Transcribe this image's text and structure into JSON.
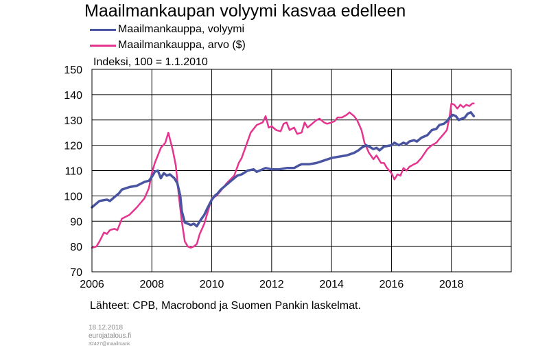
{
  "chart_data": {
    "type": "line",
    "title": "Maailmankaupan volyymi kasvaa edelleen",
    "ylabel": "Indeksi, 100 = 1.1.2010",
    "xlim": [
      2006,
      2020
    ],
    "ylim": [
      70,
      150
    ],
    "x_ticks": [
      2006,
      2008,
      2010,
      2012,
      2014,
      2016,
      2018
    ],
    "y_ticks": [
      70,
      80,
      90,
      100,
      110,
      120,
      130,
      140,
      150
    ],
    "grid": true,
    "legend_position": "top-left",
    "series": [
      {
        "name": "Maailmankauppa, volyymi",
        "color": "#4a55a2",
        "points": [
          [
            2006.0,
            95.5
          ],
          [
            2006.25,
            98
          ],
          [
            2006.5,
            98.5
          ],
          [
            2006.6,
            98
          ],
          [
            2006.75,
            99.5
          ],
          [
            2006.9,
            101
          ],
          [
            2007.0,
            102.5
          ],
          [
            2007.25,
            103.5
          ],
          [
            2007.5,
            104
          ],
          [
            2007.75,
            105.5
          ],
          [
            2007.9,
            106
          ],
          [
            2008.0,
            107.5
          ],
          [
            2008.1,
            109.5
          ],
          [
            2008.2,
            110
          ],
          [
            2008.3,
            107
          ],
          [
            2008.4,
            109
          ],
          [
            2008.5,
            108
          ],
          [
            2008.6,
            108.5
          ],
          [
            2008.75,
            107
          ],
          [
            2008.85,
            105
          ],
          [
            2008.95,
            100
          ],
          [
            2009.0,
            94
          ],
          [
            2009.1,
            89.5
          ],
          [
            2009.2,
            89
          ],
          [
            2009.3,
            88.5
          ],
          [
            2009.4,
            89
          ],
          [
            2009.5,
            88
          ],
          [
            2009.6,
            90
          ],
          [
            2009.75,
            92.5
          ],
          [
            2009.85,
            95
          ],
          [
            2010.0,
            98.5
          ],
          [
            2010.1,
            100
          ],
          [
            2010.2,
            101
          ],
          [
            2010.3,
            102.5
          ],
          [
            2010.5,
            104.5
          ],
          [
            2010.7,
            106.5
          ],
          [
            2010.85,
            108
          ],
          [
            2011.0,
            108.5
          ],
          [
            2011.2,
            110
          ],
          [
            2011.4,
            110.5
          ],
          [
            2011.5,
            109.5
          ],
          [
            2011.6,
            110
          ],
          [
            2011.8,
            111
          ],
          [
            2012.0,
            110.5
          ],
          [
            2012.25,
            110.5
          ],
          [
            2012.5,
            111
          ],
          [
            2012.75,
            111
          ],
          [
            2012.9,
            112
          ],
          [
            2013.0,
            112.5
          ],
          [
            2013.25,
            112.5
          ],
          [
            2013.5,
            113
          ],
          [
            2013.75,
            114
          ],
          [
            2014.0,
            115
          ],
          [
            2014.25,
            115.5
          ],
          [
            2014.5,
            116
          ],
          [
            2014.75,
            117
          ],
          [
            2014.9,
            118
          ],
          [
            2015.0,
            119
          ],
          [
            2015.15,
            120
          ],
          [
            2015.25,
            119.5
          ],
          [
            2015.4,
            118.5
          ],
          [
            2015.5,
            119
          ],
          [
            2015.6,
            118
          ],
          [
            2015.75,
            119.5
          ],
          [
            2016.0,
            120
          ],
          [
            2016.1,
            121
          ],
          [
            2016.25,
            120
          ],
          [
            2016.4,
            121
          ],
          [
            2016.5,
            120.5
          ],
          [
            2016.6,
            121.5
          ],
          [
            2016.75,
            122
          ],
          [
            2016.85,
            121.5
          ],
          [
            2017.0,
            123
          ],
          [
            2017.2,
            124
          ],
          [
            2017.35,
            126
          ],
          [
            2017.5,
            126.5
          ],
          [
            2017.6,
            128
          ],
          [
            2017.75,
            128.5
          ],
          [
            2017.85,
            129.5
          ],
          [
            2017.95,
            131
          ],
          [
            2018.05,
            132
          ],
          [
            2018.15,
            131.5
          ],
          [
            2018.25,
            130
          ],
          [
            2018.35,
            130.5
          ],
          [
            2018.45,
            131
          ],
          [
            2018.55,
            132.5
          ],
          [
            2018.65,
            133
          ],
          [
            2018.75,
            131.5
          ]
        ]
      },
      {
        "name": "Maailmankauppa, arvo ($)",
        "color": "#e5338f",
        "points": [
          [
            2006.0,
            79.5
          ],
          [
            2006.15,
            80
          ],
          [
            2006.25,
            82
          ],
          [
            2006.4,
            85.5
          ],
          [
            2006.5,
            85
          ],
          [
            2006.6,
            86.5
          ],
          [
            2006.75,
            87
          ],
          [
            2006.85,
            86.5
          ],
          [
            2007.0,
            91
          ],
          [
            2007.25,
            92.5
          ],
          [
            2007.5,
            95.5
          ],
          [
            2007.75,
            99
          ],
          [
            2007.9,
            103
          ],
          [
            2008.0,
            109
          ],
          [
            2008.1,
            113
          ],
          [
            2008.2,
            116
          ],
          [
            2008.3,
            119
          ],
          [
            2008.45,
            121
          ],
          [
            2008.55,
            125
          ],
          [
            2008.7,
            118
          ],
          [
            2008.8,
            112
          ],
          [
            2008.9,
            100
          ],
          [
            2009.0,
            90
          ],
          [
            2009.1,
            82
          ],
          [
            2009.2,
            80
          ],
          [
            2009.3,
            79.5
          ],
          [
            2009.4,
            80
          ],
          [
            2009.5,
            81
          ],
          [
            2009.6,
            85
          ],
          [
            2009.75,
            89
          ],
          [
            2009.9,
            95
          ],
          [
            2010.0,
            99
          ],
          [
            2010.15,
            100
          ],
          [
            2010.3,
            102
          ],
          [
            2010.5,
            105
          ],
          [
            2010.75,
            108
          ],
          [
            2010.9,
            113
          ],
          [
            2011.0,
            115
          ],
          [
            2011.15,
            120
          ],
          [
            2011.3,
            125
          ],
          [
            2011.5,
            128
          ],
          [
            2011.7,
            129
          ],
          [
            2011.8,
            131.5
          ],
          [
            2011.9,
            127
          ],
          [
            2012.0,
            127.5
          ],
          [
            2012.15,
            126
          ],
          [
            2012.3,
            125.5
          ],
          [
            2012.4,
            128.5
          ],
          [
            2012.5,
            129
          ],
          [
            2012.6,
            126
          ],
          [
            2012.75,
            127
          ],
          [
            2012.85,
            124.5
          ],
          [
            2013.0,
            125
          ],
          [
            2013.1,
            129
          ],
          [
            2013.2,
            127
          ],
          [
            2013.35,
            128.5
          ],
          [
            2013.5,
            130
          ],
          [
            2013.6,
            130.5
          ],
          [
            2013.75,
            129
          ],
          [
            2013.85,
            128.5
          ],
          [
            2014.0,
            129
          ],
          [
            2014.1,
            129.5
          ],
          [
            2014.2,
            131
          ],
          [
            2014.35,
            131
          ],
          [
            2014.5,
            132
          ],
          [
            2014.6,
            133
          ],
          [
            2014.75,
            131.5
          ],
          [
            2014.85,
            130
          ],
          [
            2015.0,
            126
          ],
          [
            2015.1,
            121
          ],
          [
            2015.25,
            117
          ],
          [
            2015.4,
            114.5
          ],
          [
            2015.5,
            116
          ],
          [
            2015.65,
            113
          ],
          [
            2015.75,
            113
          ],
          [
            2015.85,
            111
          ],
          [
            2016.0,
            109
          ],
          [
            2016.1,
            106.5
          ],
          [
            2016.2,
            108.5
          ],
          [
            2016.3,
            108
          ],
          [
            2016.4,
            111
          ],
          [
            2016.5,
            110
          ],
          [
            2016.6,
            111.5
          ],
          [
            2016.75,
            112.5
          ],
          [
            2016.85,
            113
          ],
          [
            2017.0,
            115
          ],
          [
            2017.2,
            118.5
          ],
          [
            2017.35,
            120
          ],
          [
            2017.5,
            121
          ],
          [
            2017.6,
            122.5
          ],
          [
            2017.75,
            124.5
          ],
          [
            2017.85,
            126
          ],
          [
            2017.95,
            132
          ],
          [
            2018.0,
            136.5
          ],
          [
            2018.1,
            136
          ],
          [
            2018.2,
            134.5
          ],
          [
            2018.3,
            136
          ],
          [
            2018.4,
            135
          ],
          [
            2018.5,
            136
          ],
          [
            2018.6,
            135.5
          ],
          [
            2018.7,
            136.5
          ],
          [
            2018.75,
            136.5
          ]
        ]
      }
    ],
    "source": "Lähteet: CPB, Macrobond ja Suomen Pankin laskelmat."
  },
  "footer": {
    "date": "18.12.2018",
    "site": "eurojatalous.fi",
    "code": "32427@maailmank"
  }
}
